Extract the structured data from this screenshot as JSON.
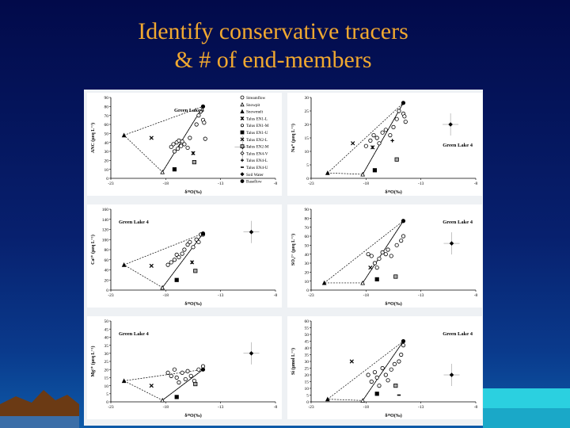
{
  "slide": {
    "title_line1": "Identify conservative tracers",
    "title_line2": "& # of end-members"
  },
  "legend": [
    {
      "label": "Streamflow",
      "marker": "circle-open"
    },
    {
      "label": "Snowpit",
      "marker": "triangle-open"
    },
    {
      "label": "Snowmelt",
      "marker": "triangle-filled"
    },
    {
      "label": "Talus EN1-L",
      "marker": "x-star"
    },
    {
      "label": "Talus EN1-M",
      "marker": "circle-open-small"
    },
    {
      "label": "Talus EN1-U",
      "marker": "square-filled"
    },
    {
      "label": "Talus EN2-L",
      "marker": "x"
    },
    {
      "label": "Talus EN2-M",
      "marker": "square-grey"
    },
    {
      "label": "Talus EN4-V",
      "marker": "diamond-open"
    },
    {
      "label": "Talus EN4-L",
      "marker": "plus"
    },
    {
      "label": "Talus EN4-U",
      "marker": "dash"
    },
    {
      "label": "Soil Water",
      "marker": "diamond-filled"
    },
    {
      "label": "Baseflow",
      "marker": "circle-filled"
    }
  ],
  "chart_data": [
    {
      "type": "scatter",
      "panel_label": "Green Lake 4",
      "ylabel": "ANC (μeq L⁻¹)",
      "xlabel": "δ¹⁸O(‰)",
      "xlim": [
        -23,
        -8
      ],
      "ylim": [
        0,
        90
      ],
      "xticks": [
        "-23",
        "-18",
        "-13",
        "-8"
      ],
      "yticks": [
        "0",
        "10",
        "20",
        "30",
        "40",
        "50",
        "60",
        "70",
        "80",
        "90"
      ],
      "series": [
        {
          "name": "Streamflow",
          "marker": "circle-open",
          "x": [
            -17.5,
            -17.3,
            -17.0,
            -16.8,
            -16.6,
            -16.5,
            -16.3,
            -16.0,
            -15.8,
            -15.0,
            -14.6,
            -14.4,
            -17.2,
            -16.9,
            -15.2,
            -14.5
          ],
          "y": [
            35,
            38,
            40,
            42,
            36,
            41,
            38,
            34,
            45,
            70,
            65,
            44,
            30,
            33,
            60,
            62
          ]
        },
        {
          "name": "Snowpit",
          "marker": "triangle-open",
          "x": [
            -18.3
          ],
          "y": [
            7
          ]
        },
        {
          "name": "Snowmelt",
          "marker": "triangle-filled",
          "x": [
            -21.8
          ],
          "y": [
            48
          ]
        },
        {
          "name": "Talus EN1-L",
          "marker": "x-star",
          "x": [
            -15.5
          ],
          "y": [
            28
          ]
        },
        {
          "name": "Talus EN1-U",
          "marker": "square-filled",
          "x": [
            -17.2
          ],
          "y": [
            10
          ]
        },
        {
          "name": "Talus EN2-L",
          "marker": "x",
          "x": [
            -19.3
          ],
          "y": [
            45
          ]
        },
        {
          "name": "Talus EN2-M",
          "marker": "square-grey",
          "x": [
            -15.4
          ],
          "y": [
            18
          ]
        },
        {
          "name": "Talus EN4-V",
          "marker": "diamond-open",
          "x": [
            -14.8
          ],
          "y": [
            74
          ]
        },
        {
          "name": "Soil Water",
          "marker": "diamond-filled",
          "x": [
            -11.0
          ],
          "y": [
            35
          ]
        },
        {
          "name": "Baseflow",
          "marker": "circle-filled",
          "x": [
            -14.6
          ],
          "y": [
            80
          ]
        }
      ]
    },
    {
      "type": "scatter",
      "panel_label": "Green Lake 4",
      "ylabel": "Na⁺ (μeq L⁻¹)",
      "xlabel": "δ¹⁸O(‰)",
      "xlim": [
        -23,
        -8
      ],
      "ylim": [
        0,
        30
      ],
      "xticks": [
        "-23",
        "-18",
        "-13",
        "-8"
      ],
      "yticks": [
        "0",
        "5",
        "10",
        "15",
        "20",
        "25",
        "30"
      ],
      "series": [
        {
          "name": "Streamflow",
          "marker": "circle-open",
          "x": [
            -18.0,
            -17.6,
            -17.3,
            -17.0,
            -16.8,
            -16.5,
            -16.2,
            -15.8,
            -15.5,
            -15.2,
            -15.0,
            -14.6,
            -14.5,
            -14.4
          ],
          "y": [
            12,
            14,
            16,
            15,
            13,
            17,
            18,
            16,
            19,
            22,
            25,
            24,
            23,
            21
          ]
        },
        {
          "name": "Snowpit",
          "marker": "triangle-open",
          "x": [
            -18.3
          ],
          "y": [
            1.5
          ]
        },
        {
          "name": "Snowmelt",
          "marker": "triangle-filled",
          "x": [
            -21.5
          ],
          "y": [
            2
          ]
        },
        {
          "name": "Talus EN1-L",
          "marker": "x-star",
          "x": [
            -17.4
          ],
          "y": [
            11.5
          ]
        },
        {
          "name": "Talus EN1-U",
          "marker": "square-filled",
          "x": [
            -17.2
          ],
          "y": [
            3
          ]
        },
        {
          "name": "Talus EN2-L",
          "marker": "x",
          "x": [
            -19.2
          ],
          "y": [
            13
          ]
        },
        {
          "name": "Talus EN2-M",
          "marker": "square-grey",
          "x": [
            -15.2
          ],
          "y": [
            7
          ]
        },
        {
          "name": "Talus EN4-L",
          "marker": "plus",
          "x": [
            -15.6
          ],
          "y": [
            14
          ]
        },
        {
          "name": "Soil Water",
          "marker": "diamond-filled",
          "x": [
            -10.3
          ],
          "y": [
            20
          ]
        },
        {
          "name": "Baseflow",
          "marker": "circle-filled",
          "x": [
            -14.6
          ],
          "y": [
            28
          ]
        }
      ]
    },
    {
      "type": "scatter",
      "panel_label": "Green Lake 4",
      "ylabel": "Ca²⁺ (μeq L⁻¹)",
      "xlabel": "δ¹⁸O(‰)",
      "xlim": [
        -23,
        -8
      ],
      "ylim": [
        0,
        160
      ],
      "xticks": [
        "-23",
        "-18",
        "-13",
        "-8"
      ],
      "yticks": [
        "0",
        "20",
        "40",
        "60",
        "80",
        "100",
        "120",
        "140",
        "160"
      ],
      "series": [
        {
          "name": "Streamflow",
          "marker": "circle-open",
          "x": [
            -17.8,
            -17.5,
            -17.2,
            -17.0,
            -16.8,
            -16.5,
            -16.3,
            -16.0,
            -15.8,
            -15.5,
            -15.2,
            -15.0,
            -14.8,
            -14.6
          ],
          "y": [
            50,
            55,
            60,
            70,
            65,
            72,
            80,
            90,
            95,
            85,
            100,
            95,
            110,
            110
          ]
        },
        {
          "name": "Snowpit",
          "marker": "triangle-open",
          "x": [
            -18.3
          ],
          "y": [
            5
          ]
        },
        {
          "name": "Snowmelt",
          "marker": "triangle-filled",
          "x": [
            -21.8
          ],
          "y": [
            50
          ]
        },
        {
          "name": "Talus EN1-L",
          "marker": "x-star",
          "x": [
            -15.6
          ],
          "y": [
            55
          ]
        },
        {
          "name": "Talus EN1-U",
          "marker": "square-filled",
          "x": [
            -17.0
          ],
          "y": [
            20
          ]
        },
        {
          "name": "Talus EN2-L",
          "marker": "x",
          "x": [
            -19.3
          ],
          "y": [
            48
          ]
        },
        {
          "name": "Talus EN2-M",
          "marker": "square-grey",
          "x": [
            -15.3
          ],
          "y": [
            38
          ]
        },
        {
          "name": "Soil Water",
          "marker": "diamond-filled",
          "x": [
            -10.2
          ],
          "y": [
            115
          ]
        },
        {
          "name": "Baseflow",
          "marker": "circle-filled",
          "x": [
            -14.6
          ],
          "y": [
            112
          ]
        }
      ]
    },
    {
      "type": "scatter",
      "panel_label": "Green Lake 4",
      "ylabel": "SO₄²⁻ (μeq L⁻¹)",
      "xlabel": "δ¹⁸O(‰)",
      "xlim": [
        -23,
        -8
      ],
      "ylim": [
        0,
        90
      ],
      "xticks": [
        "-23",
        "-18",
        "-13",
        "-8"
      ],
      "yticks": [
        "0",
        "10",
        "20",
        "30",
        "40",
        "50",
        "60",
        "70",
        "80",
        "90"
      ],
      "series": [
        {
          "name": "Streamflow",
          "marker": "circle-open",
          "x": [
            -17.8,
            -17.5,
            -17.2,
            -17.0,
            -16.8,
            -16.5,
            -16.2,
            -16.0,
            -15.7,
            -15.2,
            -14.8,
            -14.6
          ],
          "y": [
            40,
            38,
            30,
            25,
            35,
            42,
            40,
            45,
            38,
            50,
            55,
            60
          ]
        },
        {
          "name": "Snowpit",
          "marker": "triangle-open",
          "x": [
            -18.3
          ],
          "y": [
            8
          ]
        },
        {
          "name": "Snowmelt",
          "marker": "triangle-filled",
          "x": [
            -21.8
          ],
          "y": [
            8
          ]
        },
        {
          "name": "Talus EN1-U",
          "marker": "square-filled",
          "x": [
            -17.0
          ],
          "y": [
            12
          ]
        },
        {
          "name": "Talus EN2-L",
          "marker": "x",
          "x": [
            -17.6
          ],
          "y": [
            25
          ]
        },
        {
          "name": "Talus EN2-M",
          "marker": "square-grey",
          "x": [
            -15.3
          ],
          "y": [
            15
          ]
        },
        {
          "name": "Soil Water",
          "marker": "diamond-filled",
          "x": [
            -10.2
          ],
          "y": [
            52
          ]
        },
        {
          "name": "Baseflow",
          "marker": "circle-filled",
          "x": [
            -14.6
          ],
          "y": [
            77
          ]
        }
      ]
    },
    {
      "type": "scatter",
      "panel_label": "Green Lake 4",
      "ylabel": "Mg²⁺ (μeq L⁻¹)",
      "xlabel": "δ¹⁸O(‰)",
      "xlim": [
        -23,
        -8
      ],
      "ylim": [
        0,
        50
      ],
      "xticks": [
        "-23",
        "-18",
        "-13",
        "-8"
      ],
      "yticks": [
        "0",
        "5",
        "10",
        "15",
        "20",
        "25",
        "30",
        "35",
        "40",
        "45",
        "50"
      ],
      "series": [
        {
          "name": "Streamflow",
          "marker": "circle-open",
          "x": [
            -17.8,
            -17.5,
            -17.2,
            -17.0,
            -16.8,
            -16.5,
            -16.2,
            -16.0,
            -15.7,
            -15.4,
            -15.0,
            -14.6
          ],
          "y": [
            18,
            16,
            20,
            15,
            12,
            18,
            14,
            19,
            16,
            13,
            20,
            22
          ]
        },
        {
          "name": "Snowpit",
          "marker": "triangle-open",
          "x": [
            -18.3
          ],
          "y": [
            1
          ]
        },
        {
          "name": "Snowmelt",
          "marker": "triangle-filled",
          "x": [
            -21.8
          ],
          "y": [
            13
          ]
        },
        {
          "name": "Talus EN1-U",
          "marker": "square-filled",
          "x": [
            -17.0
          ],
          "y": [
            3
          ]
        },
        {
          "name": "Talus EN2-L",
          "marker": "x",
          "x": [
            -19.3
          ],
          "y": [
            10
          ]
        },
        {
          "name": "Talus EN2-M",
          "marker": "square-grey",
          "x": [
            -15.3
          ],
          "y": [
            11
          ]
        },
        {
          "name": "Soil Water",
          "marker": "diamond-filled",
          "x": [
            -10.2
          ],
          "y": [
            30
          ]
        },
        {
          "name": "Baseflow",
          "marker": "circle-filled",
          "x": [
            -14.6
          ],
          "y": [
            20
          ]
        }
      ]
    },
    {
      "type": "scatter",
      "panel_label": "Green Lake 4",
      "ylabel": "Si (μmol L⁻¹)",
      "xlabel": "δ¹⁸O(‰)",
      "xlim": [
        -23,
        -8
      ],
      "ylim": [
        0,
        60
      ],
      "xticks": [
        "-23",
        "-18",
        "-13",
        "-8"
      ],
      "yticks": [
        "0",
        "5",
        "10",
        "15",
        "20",
        "25",
        "30",
        "35",
        "40",
        "45",
        "50",
        "55",
        "60"
      ],
      "series": [
        {
          "name": "Streamflow",
          "marker": "circle-open",
          "x": [
            -17.8,
            -17.5,
            -17.2,
            -17.0,
            -16.8,
            -16.5,
            -16.2,
            -16.0,
            -15.7,
            -15.4,
            -15.0,
            -14.8,
            -14.6
          ],
          "y": [
            20,
            15,
            22,
            18,
            12,
            25,
            20,
            16,
            24,
            28,
            30,
            35,
            42
          ]
        },
        {
          "name": "Snowpit",
          "marker": "triangle-open",
          "x": [
            -18.3
          ],
          "y": [
            1
          ]
        },
        {
          "name": "Snowmelt",
          "marker": "triangle-filled",
          "x": [
            -21.5
          ],
          "y": [
            2
          ]
        },
        {
          "name": "Talus EN1-U",
          "marker": "square-filled",
          "x": [
            -17.0
          ],
          "y": [
            6
          ]
        },
        {
          "name": "Talus EN2-L",
          "marker": "x",
          "x": [
            -19.3
          ],
          "y": [
            30
          ]
        },
        {
          "name": "Talus EN2-M",
          "marker": "square-grey",
          "x": [
            -15.3
          ],
          "y": [
            12
          ]
        },
        {
          "name": "Talus EN4-U",
          "marker": "dash",
          "x": [
            -15.0
          ],
          "y": [
            5
          ]
        },
        {
          "name": "Soil Water",
          "marker": "diamond-filled",
          "x": [
            -10.2
          ],
          "y": [
            20
          ]
        },
        {
          "name": "Baseflow",
          "marker": "circle-filled",
          "x": [
            -14.6
          ],
          "y": [
            45
          ]
        }
      ]
    }
  ]
}
